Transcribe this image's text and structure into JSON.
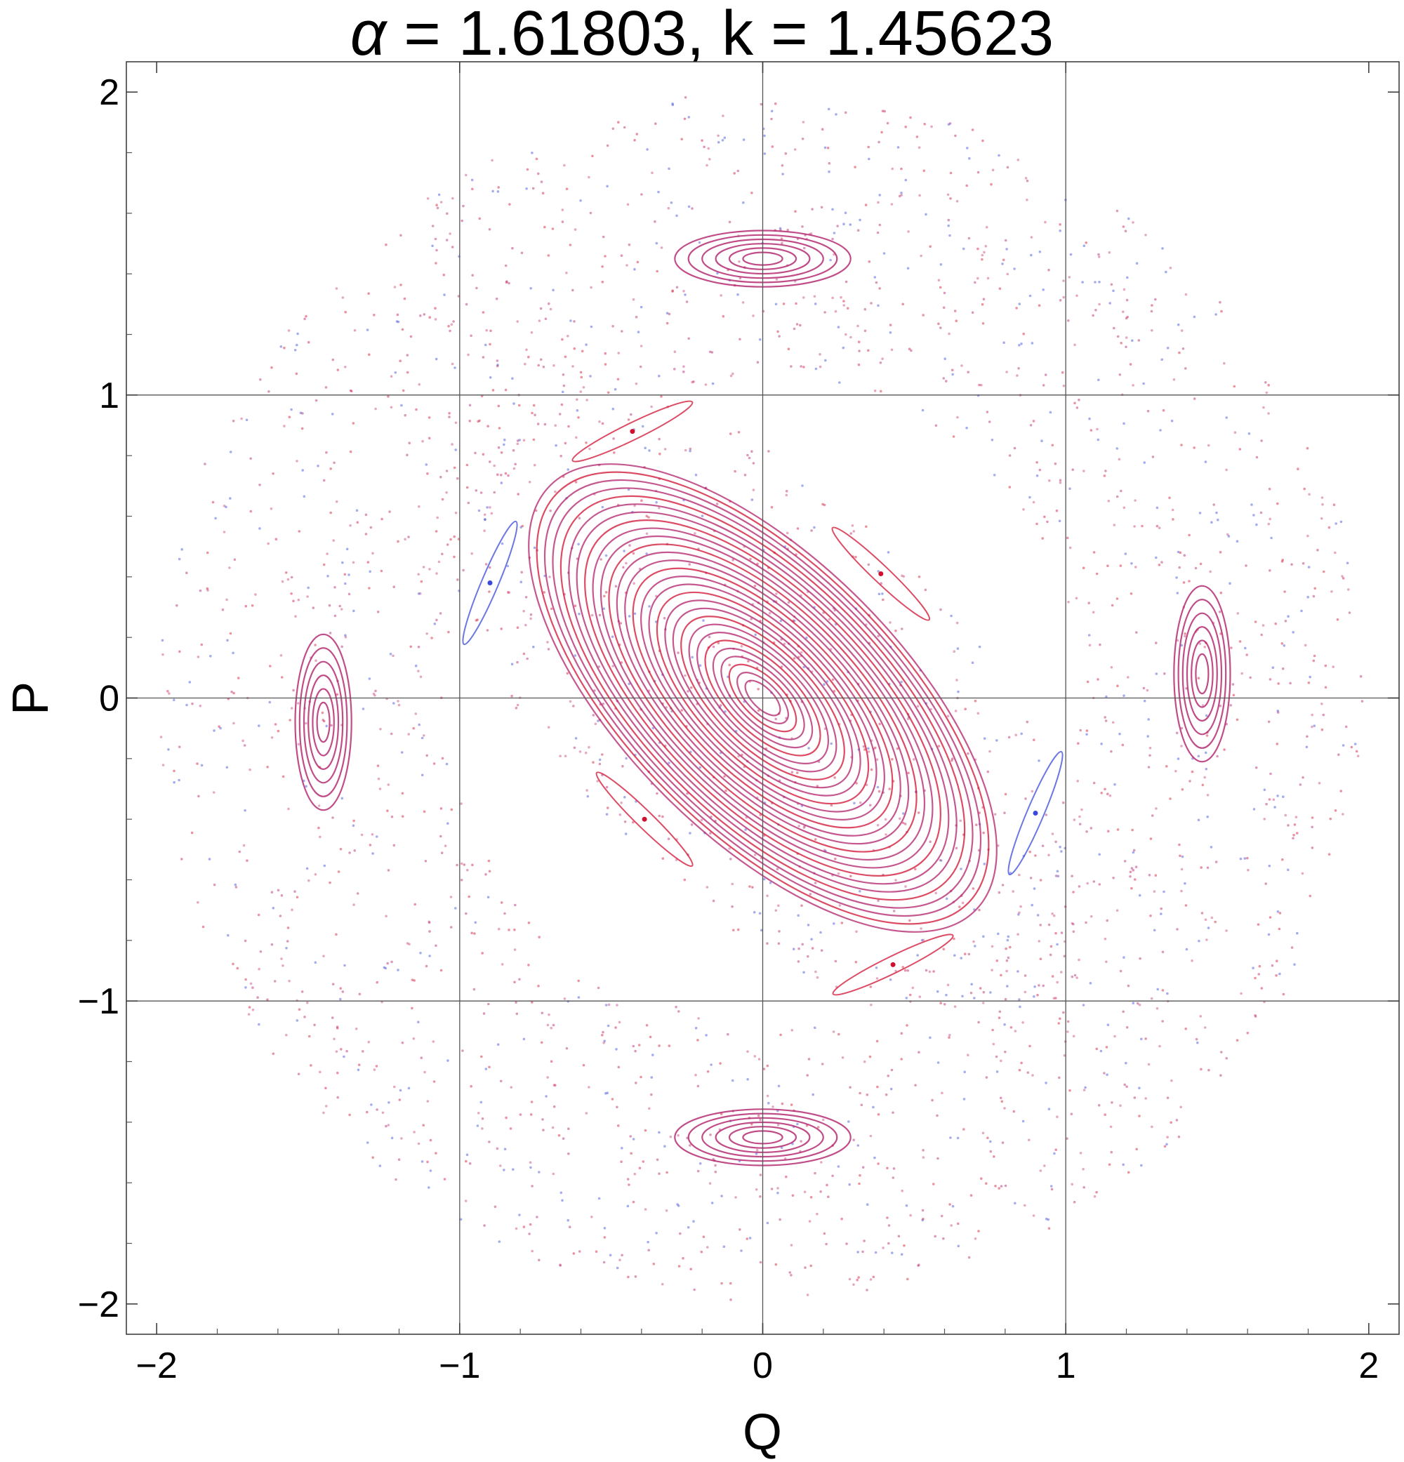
{
  "chart_data": {
    "type": "scatter",
    "title": {
      "symbol": "α",
      "text": " = 1.61803, k = 1.45623"
    },
    "alpha": 1.61803,
    "k": 1.45623,
    "xlabel": "Q",
    "ylabel": "P",
    "xlim": [
      -2.1,
      2.1
    ],
    "ylim": [
      -2.1,
      2.1
    ],
    "xticks": [
      {
        "value": -2,
        "label": "−2"
      },
      {
        "value": -1,
        "label": "−1"
      },
      {
        "value": 0,
        "label": "0"
      },
      {
        "value": 1,
        "label": "1"
      },
      {
        "value": 2,
        "label": "2"
      }
    ],
    "yticks": [
      {
        "value": -2,
        "label": "−2"
      },
      {
        "value": -1,
        "label": "−1"
      },
      {
        "value": 0,
        "label": "0"
      },
      {
        "value": 1,
        "label": "1"
      },
      {
        "value": 2,
        "label": "2"
      }
    ],
    "grid": true,
    "grid_lines": [
      -1,
      0,
      1
    ],
    "chaotic_region_radius": 2.0,
    "colors": {
      "orbit_red": "#d01030",
      "orbit_magenta": "#b0206a",
      "orbit_blue": "#3a4ad8",
      "orbit_pink": "#c8407a",
      "grid": "#555555",
      "frame": "#333333"
    },
    "central_elliptic_point": {
      "q": 0.0,
      "p": 0.0
    },
    "period4_island_centers": [
      {
        "q": 0.0,
        "p": 1.45
      },
      {
        "q": 1.45,
        "p": 0.08
      },
      {
        "q": 0.0,
        "p": -1.45
      },
      {
        "q": -1.45,
        "p": -0.08
      }
    ],
    "small_island_centers": [
      {
        "q": -0.43,
        "p": 0.88
      },
      {
        "q": -0.9,
        "p": 0.38
      },
      {
        "q": 0.39,
        "p": 0.41
      },
      {
        "q": -0.39,
        "p": -0.4
      },
      {
        "q": 0.9,
        "p": -0.38
      },
      {
        "q": 0.43,
        "p": -0.88
      }
    ]
  }
}
